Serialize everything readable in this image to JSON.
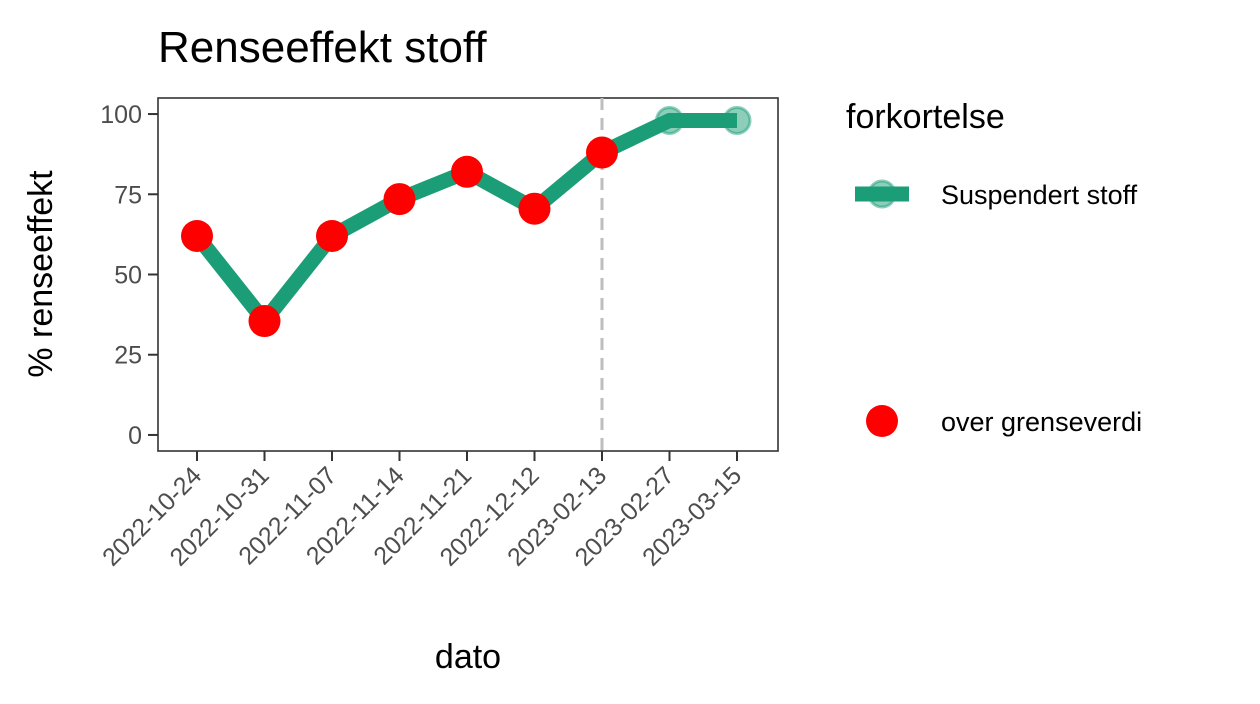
{
  "chart_data": {
    "type": "line",
    "title": "Renseeffekt stoff",
    "xlabel": "dato",
    "ylabel": "% renseeffekt",
    "categories": [
      "2022-10-24",
      "2022-10-31",
      "2022-11-07",
      "2022-11-14",
      "2022-11-21",
      "2022-12-12",
      "2023-02-13",
      "2023-02-27",
      "2023-03-15"
    ],
    "y_ticks": [
      "0",
      "25",
      "50",
      "75",
      "100"
    ],
    "ylim": [
      -5,
      105
    ],
    "grid": false,
    "series": [
      {
        "name": "Suspendert stoff",
        "values": [
          62,
          35.5,
          62,
          73.5,
          82,
          70.5,
          88,
          98,
          98
        ],
        "color": "#1b9e77"
      }
    ],
    "highlight": {
      "name": "over grenseverdi",
      "color": "#ff0000",
      "categories": [
        "2022-10-24",
        "2022-10-31",
        "2022-11-07",
        "2022-11-14",
        "2022-11-21",
        "2022-12-12",
        "2023-02-13"
      ],
      "values": [
        62,
        35.5,
        62,
        73.5,
        82,
        70.5,
        88
      ]
    },
    "reference_line": {
      "x": "2023-02-13",
      "style": "dashed",
      "color": "#bebebe"
    },
    "legend": {
      "title": "forkortelse",
      "placement": "right",
      "entries": [
        "Suspendert stoff",
        "over grenseverdi"
      ]
    }
  }
}
